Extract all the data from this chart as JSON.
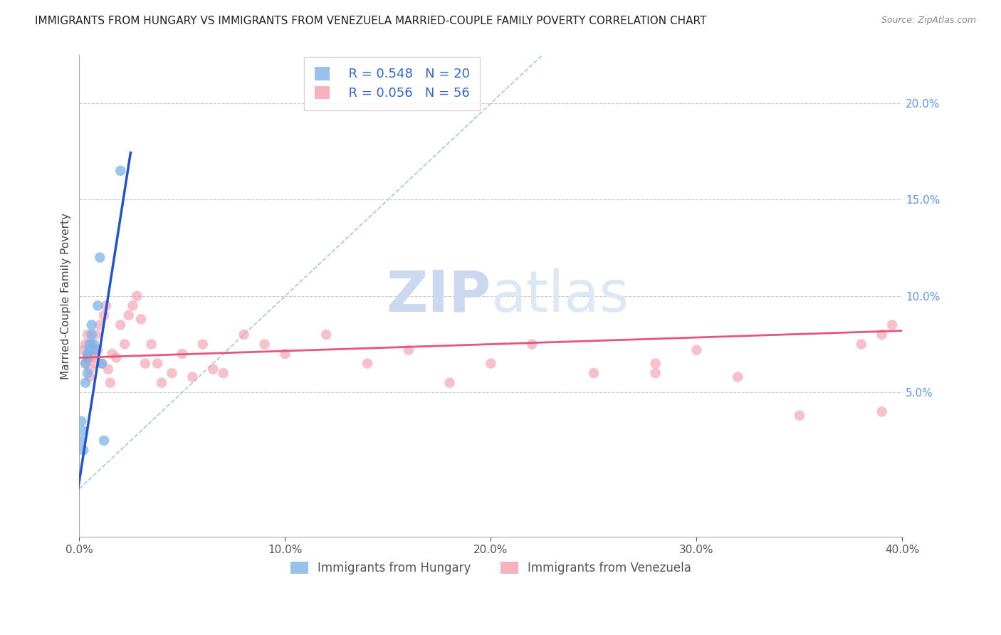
{
  "title": "IMMIGRANTS FROM HUNGARY VS IMMIGRANTS FROM VENEZUELA MARRIED-COUPLE FAMILY POVERTY CORRELATION CHART",
  "source": "Source: ZipAtlas.com",
  "xlabel_hungary": "Immigrants from Hungary",
  "xlabel_venezuela": "Immigrants from Venezuela",
  "ylabel": "Married-Couple Family Poverty",
  "xlim": [
    0,
    0.4
  ],
  "ylim": [
    -0.025,
    0.225
  ],
  "xticks": [
    0.0,
    0.1,
    0.2,
    0.3,
    0.4
  ],
  "yticks": [
    0.05,
    0.1,
    0.15,
    0.2
  ],
  "xtick_labels": [
    "0.0%",
    "10.0%",
    "20.0%",
    "30.0%",
    "40.0%"
  ],
  "ytick_labels": [
    "5.0%",
    "10.0%",
    "15.0%",
    "20.0%"
  ],
  "legend_hungary_r": "R = 0.548",
  "legend_hungary_n": "N = 20",
  "legend_venezuela_r": "R = 0.056",
  "legend_venezuela_n": "N = 56",
  "color_hungary": "#7db3e8",
  "color_venezuela": "#f4a0b0",
  "color_hungary_line": "#2255cc",
  "color_venezuela_line": "#e8557a",
  "color_ref_line": "#aac4e8",
  "watermark_zip": "ZIP",
  "watermark_atlas": "atlas",
  "hungary_x": [
    0.001,
    0.001,
    0.002,
    0.002,
    0.003,
    0.003,
    0.004,
    0.004,
    0.004,
    0.005,
    0.005,
    0.006,
    0.006,
    0.007,
    0.008,
    0.009,
    0.01,
    0.011,
    0.012,
    0.02
  ],
  "hungary_y": [
    0.035,
    0.025,
    0.03,
    0.02,
    0.065,
    0.055,
    0.07,
    0.068,
    0.06,
    0.075,
    0.072,
    0.08,
    0.085,
    0.075,
    0.072,
    0.095,
    0.12,
    0.065,
    0.025,
    0.165
  ],
  "venezuela_x": [
    0.002,
    0.003,
    0.003,
    0.004,
    0.004,
    0.005,
    0.005,
    0.006,
    0.006,
    0.007,
    0.008,
    0.008,
    0.009,
    0.01,
    0.011,
    0.012,
    0.013,
    0.014,
    0.015,
    0.016,
    0.018,
    0.02,
    0.022,
    0.024,
    0.026,
    0.028,
    0.03,
    0.032,
    0.035,
    0.038,
    0.04,
    0.045,
    0.05,
    0.055,
    0.06,
    0.065,
    0.07,
    0.08,
    0.09,
    0.1,
    0.12,
    0.14,
    0.16,
    0.18,
    0.2,
    0.22,
    0.25,
    0.28,
    0.3,
    0.32,
    0.35,
    0.38,
    0.39,
    0.395,
    0.39,
    0.28
  ],
  "venezuela_y": [
    0.072,
    0.065,
    0.075,
    0.068,
    0.08,
    0.062,
    0.058,
    0.075,
    0.068,
    0.07,
    0.065,
    0.08,
    0.072,
    0.085,
    0.065,
    0.09,
    0.095,
    0.062,
    0.055,
    0.07,
    0.068,
    0.085,
    0.075,
    0.09,
    0.095,
    0.1,
    0.088,
    0.065,
    0.075,
    0.065,
    0.055,
    0.06,
    0.07,
    0.058,
    0.075,
    0.062,
    0.06,
    0.08,
    0.075,
    0.07,
    0.08,
    0.065,
    0.072,
    0.055,
    0.065,
    0.075,
    0.06,
    0.065,
    0.072,
    0.058,
    0.038,
    0.075,
    0.04,
    0.085,
    0.08,
    0.06
  ],
  "hungary_trend_x": [
    -0.005,
    0.025
  ],
  "hungary_trend_y": [
    -0.03,
    0.175
  ],
  "venezuela_trend_x": [
    0.0,
    0.4
  ],
  "venezuela_trend_y": [
    0.068,
    0.082
  ],
  "ref_line_x": [
    0.0,
    0.225
  ],
  "ref_line_y": [
    0.0,
    0.225
  ]
}
